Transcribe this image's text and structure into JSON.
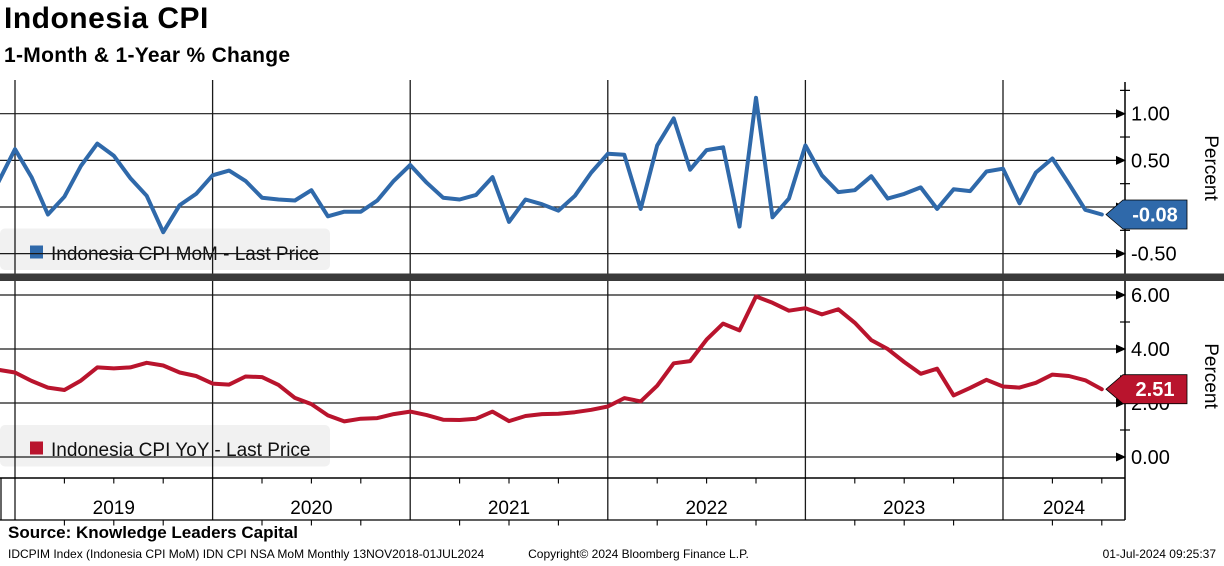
{
  "header": {
    "title": "Indonesia CPI",
    "subtitle": "1-Month & 1-Year % Change"
  },
  "panels": {
    "top": {
      "legend": "Indonesia CPI MoM - Last Price",
      "axis_label": "Percent",
      "tick_labels": [
        "1.00",
        "0.50",
        "0.00",
        "-0.50"
      ],
      "last_price_label": "-0.08",
      "color": "#2F69AA"
    },
    "bottom": {
      "legend": "Indonesia CPI YoY - Last Price",
      "axis_label": "Percent",
      "tick_labels": [
        "6.00",
        "4.00",
        "2.00",
        "0.00"
      ],
      "last_price_label": "2.51",
      "color": "#B9142D"
    }
  },
  "x_axis": {
    "year_labels": [
      "2019",
      "2020",
      "2021",
      "2022",
      "2023",
      "2024"
    ]
  },
  "footer": {
    "source": "Source: Knowledge Leaders Capital",
    "meta_left": "IDCPIM Index (Indonesia CPI MoM) IDN CPI NSA MoM  Monthly 13NOV2018-01JUL2024",
    "meta_center": "Copyright© 2024 Bloomberg Finance L.P.",
    "meta_right": "01-Jul-2024 09:25:37"
  },
  "style_colors": {
    "mom_blue": "#2F69AA",
    "yoy_red": "#B9142D",
    "separator_gray": "#3A3A3A",
    "legend_bg": "#F1F1F1",
    "grid_black": "#1A1A1A"
  },
  "chart_data": [
    {
      "type": "line",
      "title": "Indonesia CPI MoM - Last Price",
      "ylabel": "Percent",
      "frequency": "monthly",
      "x_start": "2018-11",
      "x_end": "2024-06",
      "x_range_shown": "13NOV2018-01JUL2024",
      "x_gridline_years": [
        2019,
        2020,
        2021,
        2022,
        2023,
        2024
      ],
      "yticks": [
        1.0,
        0.5,
        0.0,
        -0.5
      ],
      "ylim": [
        -0.7,
        1.36
      ],
      "grid": true,
      "legend_position": "left-inside",
      "last_price": -0.08,
      "values": [
        0.27,
        0.62,
        0.32,
        -0.08,
        0.11,
        0.44,
        0.68,
        0.55,
        0.31,
        0.12,
        -0.27,
        0.02,
        0.14,
        0.34,
        0.39,
        0.28,
        0.1,
        0.08,
        0.07,
        0.18,
        -0.1,
        -0.05,
        -0.05,
        0.07,
        0.28,
        0.45,
        0.26,
        0.1,
        0.08,
        0.13,
        0.32,
        -0.16,
        0.08,
        0.03,
        -0.04,
        0.12,
        0.37,
        0.57,
        0.56,
        -0.02,
        0.66,
        0.95,
        0.4,
        0.61,
        0.64,
        -0.21,
        1.17,
        -0.11,
        0.09,
        0.66,
        0.34,
        0.16,
        0.18,
        0.33,
        0.09,
        0.14,
        0.21,
        -0.02,
        0.19,
        0.17,
        0.38,
        0.41,
        0.04,
        0.37,
        0.52,
        0.25,
        -0.03,
        -0.08
      ]
    },
    {
      "type": "line",
      "title": "Indonesia CPI YoY - Last Price",
      "ylabel": "Percent",
      "frequency": "monthly",
      "x_start": "2018-11",
      "x_end": "2024-06",
      "x_range_shown": "13NOV2018-01JUL2024",
      "x_gridline_years": [
        2019,
        2020,
        2021,
        2022,
        2023,
        2024
      ],
      "yticks": [
        6.0,
        4.0,
        2.0,
        0.0
      ],
      "ylim": [
        -0.78,
        6.52
      ],
      "grid": true,
      "legend_position": "left-inside",
      "last_price": 2.51,
      "values": [
        3.23,
        3.13,
        2.82,
        2.57,
        2.48,
        2.83,
        3.32,
        3.28,
        3.32,
        3.49,
        3.39,
        3.13,
        3.0,
        2.72,
        2.68,
        2.98,
        2.96,
        2.67,
        2.19,
        1.96,
        1.54,
        1.32,
        1.42,
        1.44,
        1.59,
        1.68,
        1.55,
        1.38,
        1.37,
        1.42,
        1.68,
        1.33,
        1.52,
        1.59,
        1.6,
        1.66,
        1.75,
        1.87,
        2.18,
        2.06,
        2.64,
        3.47,
        3.55,
        4.35,
        4.94,
        4.69,
        5.95,
        5.71,
        5.42,
        5.51,
        5.28,
        5.47,
        4.97,
        4.33,
        4.0,
        3.52,
        3.08,
        3.27,
        2.28,
        2.56,
        2.86,
        2.61,
        2.57,
        2.75,
        3.05,
        3.0,
        2.84,
        2.51
      ]
    }
  ]
}
